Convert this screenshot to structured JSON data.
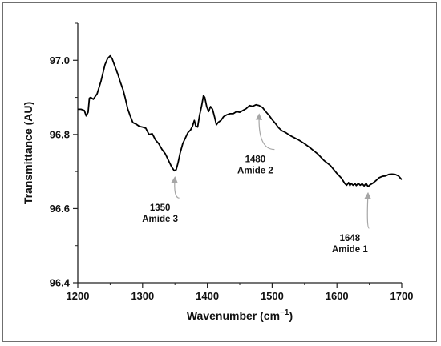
{
  "chart_data": {
    "type": "line",
    "title": "",
    "xlabel": "Wavenumber (cm",
    "xlabel_sup": "−1",
    "xlabel_close": ")",
    "ylabel": "Transmittance (AU)",
    "xlim": [
      1200,
      1700
    ],
    "ylim": [
      96.4,
      97.1
    ],
    "x_ticks": [
      1200,
      1300,
      1400,
      1500,
      1600,
      1700
    ],
    "x_tick_labels": [
      "1200",
      "1300",
      "1400",
      "1500",
      "1600",
      "1700"
    ],
    "y_ticks": [
      96.4,
      96.6,
      96.8,
      97.0
    ],
    "y_tick_labels": [
      "96.4",
      "96.6",
      "96.8",
      "97.0"
    ],
    "grid": false,
    "series": [
      {
        "color": "#000000",
        "points": [
          [
            1200,
            96.868
          ],
          [
            1205,
            96.868
          ],
          [
            1210,
            96.865
          ],
          [
            1213,
            96.85
          ],
          [
            1216,
            96.86
          ],
          [
            1218,
            96.898
          ],
          [
            1220,
            96.9
          ],
          [
            1224,
            96.895
          ],
          [
            1230,
            96.91
          ],
          [
            1236,
            96.945
          ],
          [
            1242,
            96.988
          ],
          [
            1246,
            97.005
          ],
          [
            1250,
            97.012
          ],
          [
            1253,
            97.005
          ],
          [
            1257,
            96.985
          ],
          [
            1262,
            96.962
          ],
          [
            1266,
            96.94
          ],
          [
            1270,
            96.92
          ],
          [
            1273,
            96.9
          ],
          [
            1277,
            96.87
          ],
          [
            1281,
            96.85
          ],
          [
            1285,
            96.832
          ],
          [
            1290,
            96.828
          ],
          [
            1295,
            96.822
          ],
          [
            1300,
            96.82
          ],
          [
            1305,
            96.817
          ],
          [
            1310,
            96.8
          ],
          [
            1315,
            96.802
          ],
          [
            1320,
            96.785
          ],
          [
            1325,
            96.775
          ],
          [
            1330,
            96.76
          ],
          [
            1335,
            96.748
          ],
          [
            1340,
            96.73
          ],
          [
            1345,
            96.712
          ],
          [
            1349,
            96.702
          ],
          [
            1352,
            96.705
          ],
          [
            1355,
            96.725
          ],
          [
            1358,
            96.75
          ],
          [
            1362,
            96.775
          ],
          [
            1366,
            96.79
          ],
          [
            1370,
            96.805
          ],
          [
            1374,
            96.812
          ],
          [
            1377,
            96.822
          ],
          [
            1380,
            96.838
          ],
          [
            1382,
            96.823
          ],
          [
            1385,
            96.82
          ],
          [
            1388,
            96.852
          ],
          [
            1391,
            96.875
          ],
          [
            1394,
            96.905
          ],
          [
            1396,
            96.9
          ],
          [
            1399,
            96.875
          ],
          [
            1402,
            96.862
          ],
          [
            1405,
            96.875
          ],
          [
            1408,
            96.868
          ],
          [
            1411,
            96.848
          ],
          [
            1414,
            96.826
          ],
          [
            1417,
            96.833
          ],
          [
            1421,
            96.838
          ],
          [
            1425,
            96.848
          ],
          [
            1430,
            96.853
          ],
          [
            1435,
            96.856
          ],
          [
            1440,
            96.856
          ],
          [
            1445,
            96.862
          ],
          [
            1450,
            96.86
          ],
          [
            1455,
            96.865
          ],
          [
            1460,
            96.87
          ],
          [
            1465,
            96.878
          ],
          [
            1470,
            96.876
          ],
          [
            1475,
            96.88
          ],
          [
            1480,
            96.878
          ],
          [
            1485,
            96.873
          ],
          [
            1490,
            96.862
          ],
          [
            1495,
            96.852
          ],
          [
            1500,
            96.84
          ],
          [
            1505,
            96.83
          ],
          [
            1510,
            96.818
          ],
          [
            1515,
            96.81
          ],
          [
            1520,
            96.806
          ],
          [
            1530,
            96.795
          ],
          [
            1540,
            96.786
          ],
          [
            1550,
            96.775
          ],
          [
            1560,
            96.762
          ],
          [
            1570,
            96.748
          ],
          [
            1580,
            96.73
          ],
          [
            1590,
            96.716
          ],
          [
            1600,
            96.695
          ],
          [
            1607,
            96.682
          ],
          [
            1612,
            96.668
          ],
          [
            1615,
            96.663
          ],
          [
            1618,
            96.67
          ],
          [
            1620,
            96.662
          ],
          [
            1622,
            96.668
          ],
          [
            1625,
            96.663
          ],
          [
            1628,
            96.667
          ],
          [
            1630,
            96.662
          ],
          [
            1633,
            96.668
          ],
          [
            1636,
            96.663
          ],
          [
            1639,
            96.667
          ],
          [
            1642,
            96.661
          ],
          [
            1645,
            96.668
          ],
          [
            1648,
            96.659
          ],
          [
            1651,
            96.664
          ],
          [
            1655,
            96.668
          ],
          [
            1660,
            96.675
          ],
          [
            1665,
            96.683
          ],
          [
            1670,
            96.687
          ],
          [
            1675,
            96.688
          ],
          [
            1680,
            96.692
          ],
          [
            1685,
            96.693
          ],
          [
            1690,
            96.692
          ],
          [
            1695,
            96.688
          ],
          [
            1698,
            96.682
          ],
          [
            1700,
            96.678
          ]
        ]
      }
    ],
    "annotations": [
      {
        "point": [
          1350,
          96.702
        ],
        "label_pos": [
          1327,
          96.594
        ],
        "lines": [
          "1350",
          "Amide 3"
        ]
      },
      {
        "point": [
          1480,
          96.872
        ],
        "label_pos": [
          1474,
          96.725
        ],
        "lines": [
          "1480",
          "Amide 2"
        ]
      },
      {
        "point": [
          1648,
          96.659
        ],
        "label_pos": [
          1620,
          96.512
        ],
        "lines": [
          "1648",
          "Amide 1"
        ]
      }
    ]
  }
}
